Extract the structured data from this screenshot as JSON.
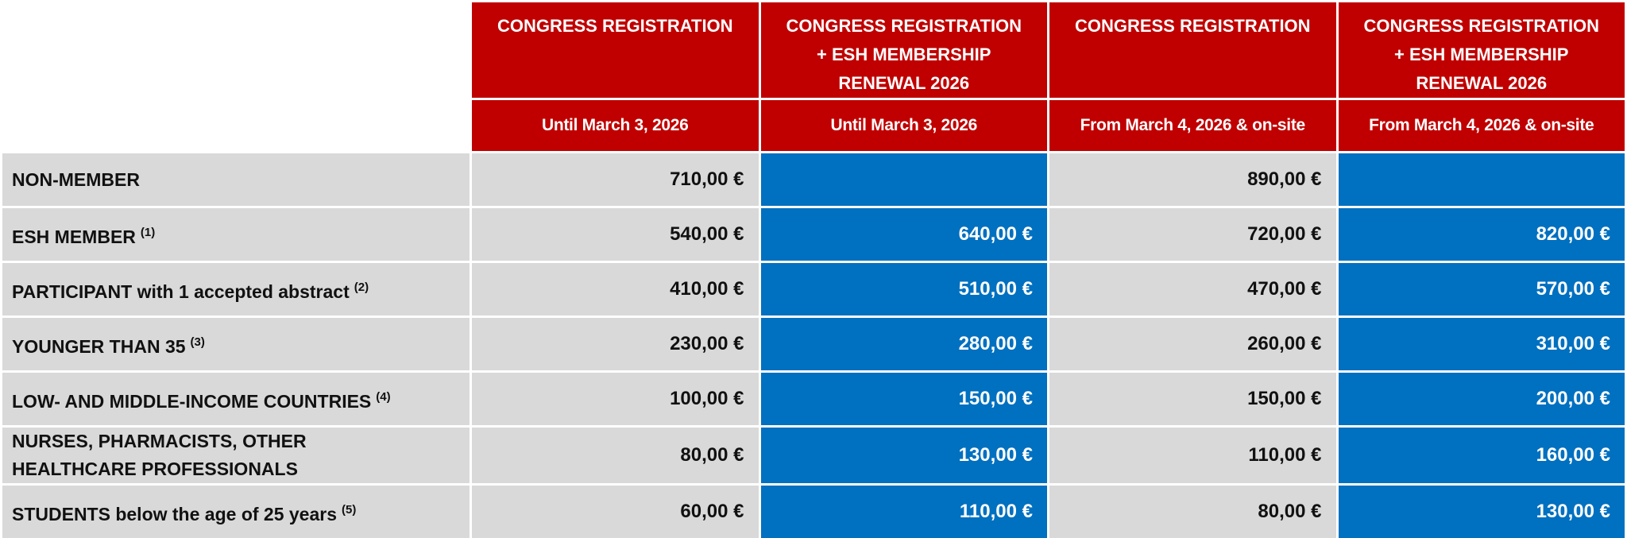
{
  "table": {
    "columns": [
      {
        "title": [
          "CONGRESS REGISTRATION"
        ],
        "period": "Until March 3, 2026"
      },
      {
        "title": [
          "CONGRESS REGISTRATION",
          "+ ESH MEMBERSHIP",
          "RENEWAL 2026"
        ],
        "period": "Until March 3, 2026"
      },
      {
        "title": [
          "CONGRESS REGISTRATION"
        ],
        "period": "From March 4, 2026 & on-site"
      },
      {
        "title": [
          "CONGRESS REGISTRATION",
          "+ ESH MEMBERSHIP",
          "RENEWAL 2026"
        ],
        "period": "From March 4, 2026 & on-site"
      }
    ],
    "rows": [
      {
        "label": [
          "NON-MEMBER"
        ],
        "values": [
          "710,00 €",
          null,
          "890,00 €",
          null
        ]
      },
      {
        "label": [
          "ESH MEMBER"
        ],
        "note": "(1)",
        "values": [
          "540,00 €",
          "640,00 €",
          "720,00 €",
          "820,00 €"
        ]
      },
      {
        "label": [
          "PARTICIPANT with 1 accepted abstract"
        ],
        "note": "(2)",
        "values": [
          "410,00 €",
          "510,00 €",
          "470,00 €",
          "570,00 €"
        ]
      },
      {
        "label": [
          "YOUNGER THAN 35"
        ],
        "note": "(3)",
        "values": [
          "230,00 €",
          "280,00 €",
          "260,00 €",
          "310,00 €"
        ]
      },
      {
        "label": [
          "LOW- AND MIDDLE-INCOME COUNTRIES"
        ],
        "note": "(4)",
        "values": [
          "100,00 €",
          "150,00 €",
          "150,00 €",
          "200,00 €"
        ]
      },
      {
        "label": [
          "NURSES, PHARMACISTS, OTHER",
          "HEALTHCARE PROFESSIONALS"
        ],
        "values": [
          "80,00 €",
          "130,00 €",
          "110,00 €",
          "160,00 €"
        ]
      },
      {
        "label": [
          "STUDENTS below the age of 25 years"
        ],
        "note": "(5)",
        "values": [
          "60,00 €",
          "110,00 €",
          "80,00 €",
          "130,00 €"
        ]
      }
    ]
  }
}
